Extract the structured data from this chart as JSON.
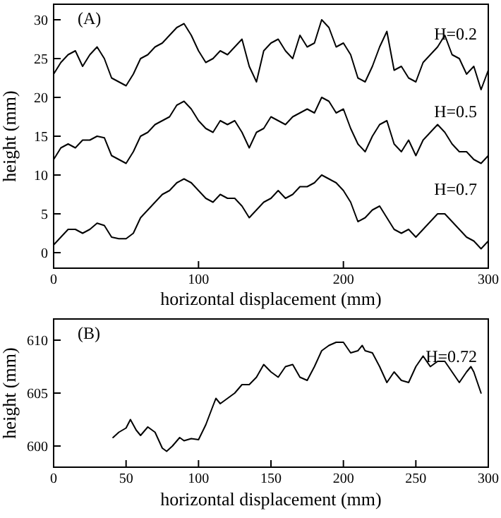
{
  "chart_data": [
    {
      "type": "line",
      "title": "(A)",
      "xlabel": "horizontal displacement (mm)",
      "ylabel": "height (mm)",
      "xlim": [
        0,
        300
      ],
      "xticks": [
        0,
        100,
        200,
        300
      ],
      "ylim": [
        -2,
        32
      ],
      "yticks": [
        0,
        5,
        10,
        15,
        20,
        25,
        30
      ],
      "grid": false,
      "marker": "none",
      "line_style": "solid",
      "x": [
        0,
        5,
        10,
        15,
        20,
        25,
        30,
        35,
        40,
        45,
        50,
        55,
        60,
        65,
        70,
        75,
        80,
        85,
        90,
        95,
        100,
        105,
        110,
        115,
        120,
        125,
        130,
        135,
        140,
        145,
        150,
        155,
        160,
        165,
        170,
        175,
        180,
        185,
        190,
        195,
        200,
        205,
        210,
        215,
        220,
        225,
        230,
        235,
        240,
        245,
        250,
        255,
        260,
        265,
        270,
        275,
        280,
        285,
        290,
        295,
        300
      ],
      "series": [
        {
          "name": "H=0.2",
          "color": "#000000",
          "values": [
            23,
            24.5,
            25.5,
            26,
            24,
            25.5,
            26.5,
            25,
            22.5,
            22,
            21.5,
            23,
            25,
            25.5,
            26.5,
            27,
            28,
            29,
            29.5,
            28,
            26,
            24.5,
            25,
            26,
            25.5,
            26.5,
            27.5,
            24,
            22,
            26,
            27,
            27.5,
            26,
            25,
            28,
            26.5,
            27,
            30,
            29,
            26.5,
            27,
            25.5,
            22.5,
            22,
            24,
            26.5,
            28.5,
            23.5,
            24,
            22.5,
            22,
            24.5,
            25.5,
            26.5,
            28,
            25.5,
            25,
            23,
            24,
            21,
            23.5
          ]
        },
        {
          "name": "H=0.5",
          "color": "#000000",
          "values": [
            12,
            13.5,
            14,
            13.5,
            14.5,
            14.5,
            15,
            14.8,
            12.5,
            12,
            11.5,
            13,
            15,
            15.5,
            16.5,
            17,
            17.5,
            19,
            19.5,
            18.5,
            17,
            16,
            15.5,
            17,
            16.5,
            17,
            15.5,
            13.5,
            15.5,
            16,
            17.5,
            17,
            16.5,
            17.5,
            18,
            18.5,
            18,
            20,
            19.5,
            18,
            18.5,
            16,
            14,
            13,
            15,
            16.5,
            17,
            14,
            13,
            14.5,
            12.5,
            14.5,
            15.5,
            16.5,
            15.5,
            14,
            13,
            13,
            12,
            11.5,
            12.5
          ]
        },
        {
          "name": "H=0.7",
          "color": "#000000",
          "values": [
            1,
            2,
            3,
            3,
            2.5,
            3,
            3.8,
            3.5,
            2,
            1.8,
            1.8,
            2.5,
            4.5,
            5.5,
            6.5,
            7.5,
            8,
            9,
            9.5,
            9,
            8,
            7,
            6.5,
            7.5,
            7,
            7,
            6,
            4.5,
            5.5,
            6.5,
            7,
            8,
            7,
            7.5,
            8.5,
            8.5,
            9,
            10,
            9.5,
            9,
            8,
            6.5,
            4,
            4.5,
            5.5,
            6,
            4.5,
            3,
            2.5,
            3,
            2,
            3,
            4,
            5,
            5,
            4,
            3,
            2,
            1.5,
            0.5,
            1.5
          ]
        }
      ]
    },
    {
      "type": "line",
      "title": "(B)",
      "xlabel": "horizontal displacement (mm)",
      "ylabel": "height (mm)",
      "xlim": [
        0,
        300
      ],
      "xticks": [
        0,
        50,
        100,
        150,
        200,
        250,
        300
      ],
      "ylim": [
        598,
        612
      ],
      "yticks": [
        600,
        605,
        610
      ],
      "grid": false,
      "marker": "none",
      "line_style": "solid",
      "x": [
        41,
        45,
        50,
        53,
        57,
        60,
        65,
        70,
        75,
        78,
        82,
        87,
        90,
        95,
        100,
        105,
        110,
        112,
        115,
        120,
        125,
        130,
        135,
        140,
        145,
        150,
        155,
        160,
        165,
        170,
        175,
        180,
        185,
        190,
        195,
        200,
        205,
        210,
        213,
        215,
        220,
        225,
        230,
        235,
        240,
        245,
        250,
        255,
        260,
        265,
        270,
        275,
        280,
        285,
        288,
        290,
        295
      ],
      "series": [
        {
          "name": "H=0.72",
          "color": "#000000",
          "values": [
            600.8,
            601.3,
            601.7,
            602.5,
            601.5,
            601,
            601.8,
            601.3,
            599.8,
            599.5,
            600,
            600.8,
            600.5,
            600.7,
            600.6,
            602,
            603.8,
            604.5,
            604,
            604.5,
            605,
            605.8,
            605.8,
            606.5,
            607.7,
            607,
            606.5,
            607.5,
            607.7,
            606.5,
            606.2,
            607.5,
            609,
            609.5,
            609.8,
            609.8,
            608.8,
            609,
            609.5,
            609,
            608.8,
            607.5,
            606,
            607,
            606.2,
            606,
            607.5,
            608.5,
            607.5,
            608,
            608,
            607,
            606,
            607,
            607.5,
            607,
            605
          ]
        }
      ]
    }
  ]
}
